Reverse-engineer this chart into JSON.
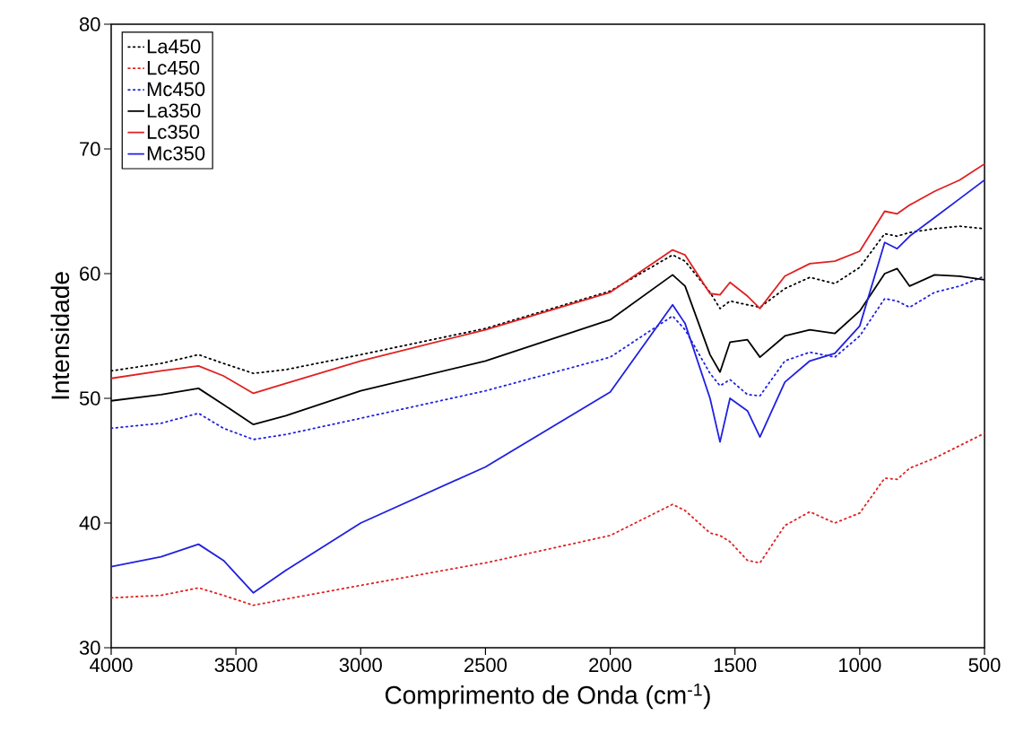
{
  "chart_data": {
    "type": "line",
    "xlabel": "Comprimento de Onda (cm$^{-1}$)",
    "ylabel": "Intensidade",
    "x": [
      4000,
      3800,
      3650,
      3550,
      3430,
      3300,
      3000,
      2500,
      2000,
      1750,
      1700,
      1600,
      1560,
      1520,
      1450,
      1400,
      1300,
      1200,
      1100,
      1000,
      900,
      850,
      800,
      700,
      600,
      500
    ],
    "xlim": [
      4000,
      500
    ],
    "xticks": [
      4000,
      3500,
      3000,
      2500,
      2000,
      1500,
      1000,
      500
    ],
    "ylim": [
      30,
      80
    ],
    "yticks": [
      30,
      40,
      50,
      60,
      70,
      80
    ],
    "legend": "top left",
    "grid": false,
    "marker": "none",
    "series": [
      {
        "name": "La450",
        "color": "#000000",
        "line_style": "dotted",
        "values": [
          52.2,
          52.8,
          53.5,
          52.8,
          52.0,
          52.3,
          53.5,
          55.6,
          58.6,
          61.5,
          61.0,
          58.5,
          57.2,
          57.8,
          57.5,
          57.3,
          58.8,
          59.7,
          59.2,
          60.5,
          63.2,
          63.0,
          63.3,
          63.6,
          63.8,
          63.6
        ]
      },
      {
        "name": "Lc450",
        "color": "#e02020",
        "line_style": "dotted",
        "values": [
          34.0,
          34.2,
          34.8,
          34.2,
          33.4,
          33.9,
          35.0,
          36.8,
          39.0,
          41.5,
          41.0,
          39.2,
          39.0,
          38.5,
          37.0,
          36.8,
          39.8,
          40.9,
          40.0,
          40.8,
          43.6,
          43.5,
          44.4,
          45.2,
          46.2,
          47.2
        ]
      },
      {
        "name": "Mc450",
        "color": "#2020e0",
        "line_style": "dotted",
        "values": [
          47.6,
          48.0,
          48.8,
          47.6,
          46.7,
          47.1,
          48.4,
          50.6,
          53.3,
          56.6,
          55.5,
          52.0,
          51.0,
          51.5,
          50.3,
          50.2,
          53.0,
          53.7,
          53.3,
          55.0,
          58.0,
          57.8,
          57.3,
          58.5,
          59.0,
          59.8
        ]
      },
      {
        "name": "La350",
        "color": "#000000",
        "line_style": "solid",
        "values": [
          49.8,
          50.3,
          50.8,
          49.5,
          47.9,
          48.6,
          50.6,
          53.0,
          56.3,
          59.9,
          59.0,
          53.5,
          52.1,
          54.5,
          54.7,
          53.3,
          55.0,
          55.5,
          55.2,
          57.0,
          60.0,
          60.4,
          59.0,
          59.9,
          59.8,
          59.5
        ]
      },
      {
        "name": "Lc350",
        "color": "#e02020",
        "line_style": "solid",
        "values": [
          51.6,
          52.2,
          52.6,
          51.8,
          50.4,
          51.2,
          53.0,
          55.5,
          58.5,
          61.9,
          61.5,
          58.4,
          58.3,
          59.3,
          58.2,
          57.2,
          59.8,
          60.8,
          61.0,
          61.8,
          65.0,
          64.8,
          65.5,
          66.6,
          67.5,
          68.8
        ]
      },
      {
        "name": "Mc350",
        "color": "#2020e0",
        "line_style": "solid",
        "values": [
          36.5,
          37.3,
          38.3,
          37.0,
          34.4,
          36.2,
          40.0,
          44.5,
          50.5,
          57.5,
          56.0,
          50.0,
          46.5,
          50.0,
          49.0,
          46.9,
          51.3,
          53.0,
          53.6,
          55.8,
          62.5,
          62.0,
          63.0,
          64.5,
          66.0,
          67.5
        ]
      }
    ]
  }
}
